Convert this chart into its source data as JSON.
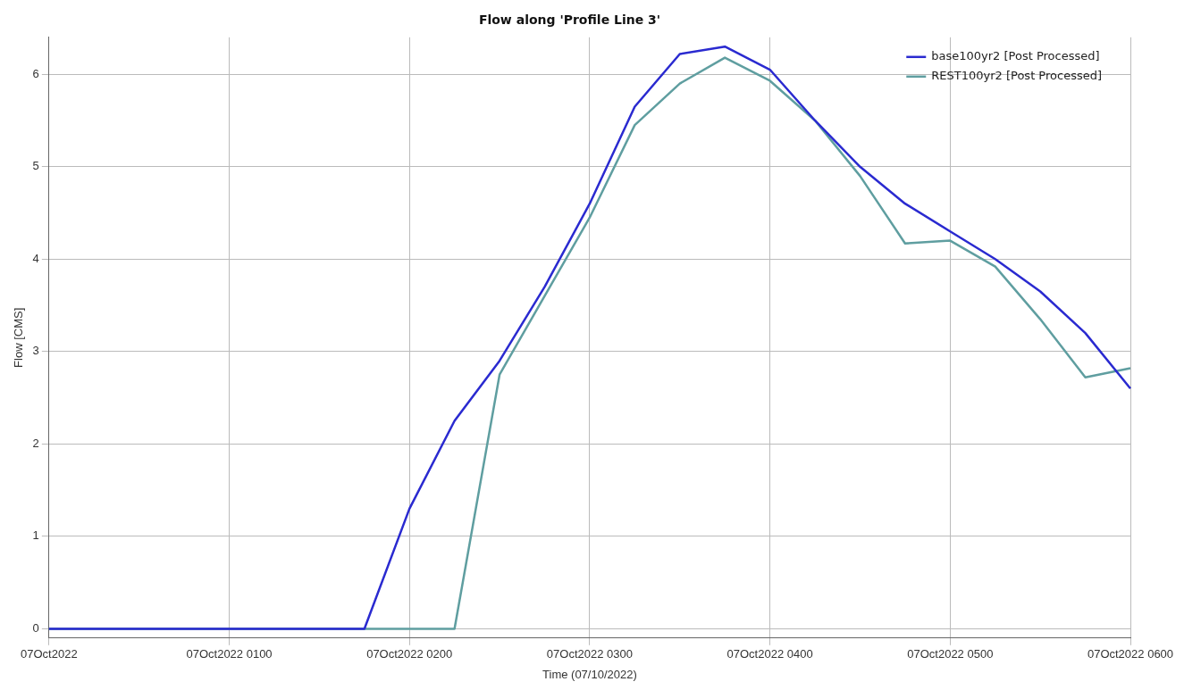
{
  "chart_data": {
    "type": "line",
    "title": "Flow along 'Profile Line 3'",
    "xlabel": "Time (07/10/2022)",
    "ylabel": "Flow [CMS]",
    "categories": [
      "07Oct2022",
      null,
      null,
      null,
      "07Oct2022 0100",
      null,
      null,
      null,
      "07Oct2022 0200",
      null,
      null,
      null,
      "07Oct2022 0300",
      null,
      null,
      null,
      "07Oct2022 0400",
      null,
      null,
      null,
      "07Oct2022 0500",
      null,
      null,
      null,
      "07Oct2022 0600"
    ],
    "series": [
      {
        "name": "base100yr2 [Post Processed]",
        "color": "#2a2ad0",
        "values": [
          0,
          0,
          0,
          0,
          0,
          0,
          0,
          0,
          1.3,
          2.25,
          2.9,
          3.7,
          4.6,
          5.65,
          6.22,
          6.3,
          6.05,
          5.5,
          5.0,
          4.6,
          4.3,
          4.0,
          3.65,
          3.2,
          2.6
        ]
      },
      {
        "name": "REST100yr2 [Post Processed]",
        "color": "#5f9ea0",
        "values": [
          0,
          0,
          0,
          0,
          0,
          0,
          0,
          0,
          0,
          0,
          2.75,
          3.6,
          4.45,
          5.45,
          5.9,
          6.18,
          5.93,
          5.5,
          4.9,
          4.17,
          4.2,
          3.92,
          3.35,
          2.72,
          2.82
        ]
      }
    ],
    "ylim": [
      -0.1,
      6.4
    ],
    "yticks": [
      0,
      1,
      2,
      3,
      4,
      5,
      6
    ],
    "grid": true,
    "legend": "top right",
    "marker": "none",
    "line_style": "solid"
  }
}
